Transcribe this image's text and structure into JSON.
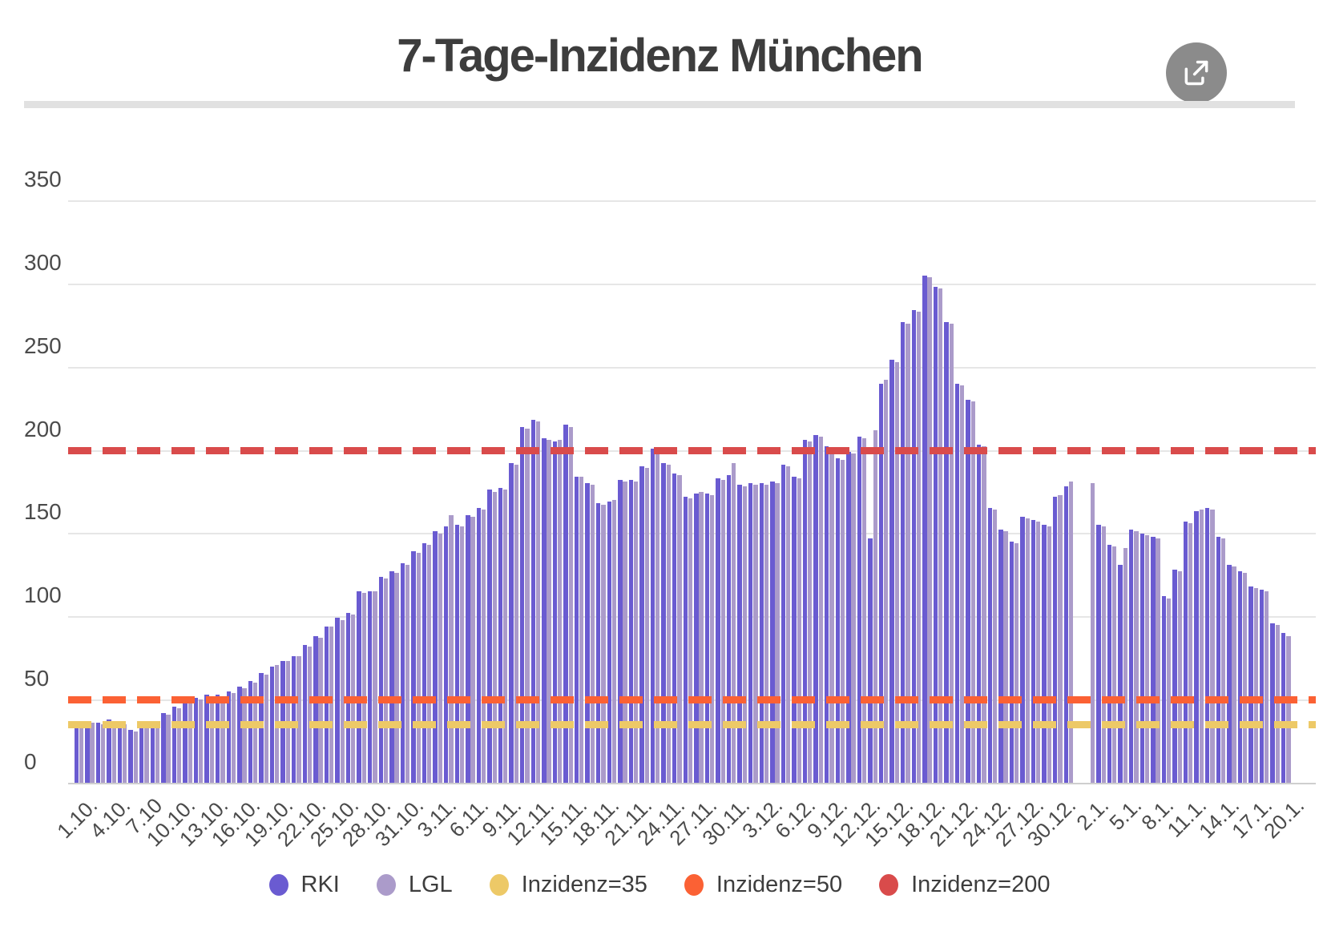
{
  "header": {
    "title": "7-Tage-Inzidenz München"
  },
  "chart_data": {
    "type": "bar",
    "title": "7-Tage-Inzidenz München",
    "xlabel": "",
    "ylabel": "",
    "y_ticks": [
      0,
      50,
      100,
      150,
      200,
      250,
      300,
      350
    ],
    "ylim": [
      0,
      350
    ],
    "grid": true,
    "legend_position": "bottom",
    "x_label_step": 3,
    "x_tick_labels": [
      "1.10.",
      "4.10.",
      "7.10",
      "10.10.",
      "13.10.",
      "16.10.",
      "19.10.",
      "22.10.",
      "25.10.",
      "28.10.",
      "31.10.",
      "3.11.",
      "6.11.",
      "9.11.",
      "12.11.",
      "15.11.",
      "18.11.",
      "21.11.",
      "24.11.",
      "27.11.",
      "30.11.",
      "3.12.",
      "6.12.",
      "9.12.",
      "12.12.",
      "15.12.",
      "18.12.",
      "21.12.",
      "24.12.",
      "27.12.",
      "30.12.",
      "2.1.",
      "5.1.",
      "8.1.",
      "11.1.",
      "14.1.",
      "17.1.",
      "20.1."
    ],
    "series": [
      {
        "name": "RKI",
        "color": "#6a5bd1",
        "values": [
          36,
          37,
          36,
          38,
          35,
          32,
          34,
          34,
          42,
          46,
          49,
          51,
          53,
          53,
          55,
          58,
          61,
          66,
          70,
          73,
          76,
          83,
          88,
          94,
          99,
          102,
          115,
          115,
          124,
          127,
          132,
          139,
          144,
          151,
          154,
          155,
          161,
          165,
          176,
          177,
          192,
          214,
          218,
          207,
          205,
          215,
          184,
          180,
          168,
          169,
          182,
          182,
          190,
          201,
          192,
          186,
          172,
          174,
          174,
          183,
          185,
          179,
          180,
          180,
          181,
          191,
          184,
          206,
          209,
          202,
          195,
          199,
          208,
          147,
          240,
          254,
          277,
          284,
          305,
          298,
          277,
          240,
          230,
          203,
          165,
          152,
          145,
          160,
          158,
          155,
          172,
          178,
          null,
          null,
          155,
          143,
          131,
          152,
          150,
          148,
          112,
          128,
          157,
          163,
          165,
          148,
          131,
          127,
          118,
          116,
          96,
          90
        ]
      },
      {
        "name": "LGL",
        "color": "#ab9bca",
        "values": [
          35,
          36,
          35,
          37,
          35,
          31,
          33,
          34,
          41,
          45,
          48,
          50,
          52,
          52,
          54,
          57,
          60,
          65,
          71,
          73,
          76,
          82,
          87,
          94,
          98,
          101,
          114,
          115,
          123,
          126,
          131,
          138,
          143,
          150,
          161,
          154,
          160,
          164,
          175,
          176,
          191,
          213,
          217,
          206,
          206,
          214,
          184,
          179,
          167,
          170,
          181,
          181,
          189,
          200,
          191,
          185,
          171,
          175,
          173,
          182,
          192,
          178,
          179,
          179,
          180,
          190,
          183,
          205,
          208,
          201,
          194,
          198,
          207,
          212,
          242,
          253,
          276,
          283,
          304,
          297,
          276,
          239,
          229,
          202,
          164,
          151,
          144,
          159,
          157,
          154,
          173,
          181,
          null,
          180,
          154,
          142,
          141,
          151,
          149,
          147,
          111,
          127,
          156,
          164,
          164,
          147,
          130,
          126,
          117,
          115,
          95,
          88
        ]
      }
    ],
    "reference_lines": [
      {
        "name": "Inzidenz=35",
        "value": 35,
        "color": "#edc967"
      },
      {
        "name": "Inzidenz=50",
        "value": 50,
        "color": "#fb6134"
      },
      {
        "name": "Inzidenz=200",
        "value": 200,
        "color": "#d94b4b"
      }
    ]
  },
  "icons": {
    "share": "share-icon"
  },
  "colors": {
    "title_text": "#3d3d3d",
    "axis_text": "#4a4a4a",
    "gridline": "#e6e6e6",
    "share_button": "#8b8b8b",
    "divider": "#e1e1e1"
  }
}
